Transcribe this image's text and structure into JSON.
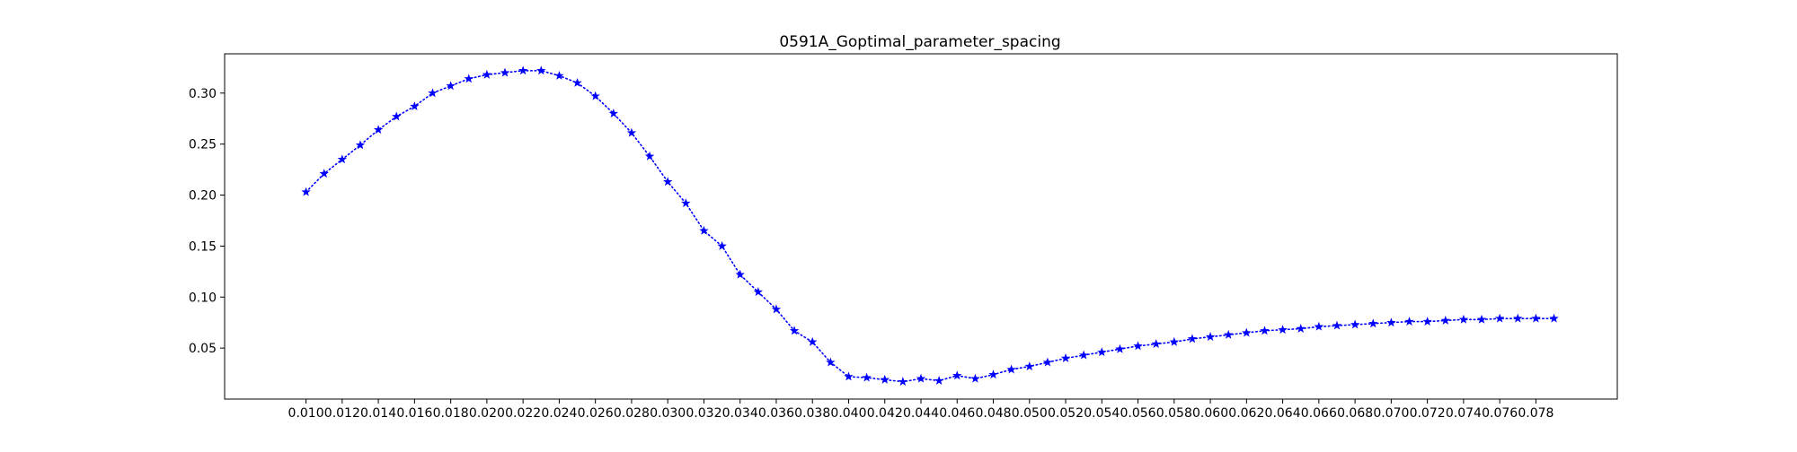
{
  "chart_data": {
    "type": "line",
    "title": "0591A_Goptimal_parameter_spacing",
    "xlabel": "",
    "ylabel": "",
    "xlim": [
      0.0055,
      0.0825
    ],
    "ylim": [
      0.0,
      0.3385
    ],
    "x_ticks": [
      "0.010",
      "0.012",
      "0.014",
      "0.016",
      "0.018",
      "0.020",
      "0.022",
      "0.024",
      "0.026",
      "0.028",
      "0.030",
      "0.032",
      "0.034",
      "0.036",
      "0.038",
      "0.040",
      "0.042",
      "0.044",
      "0.046",
      "0.048",
      "0.050",
      "0.052",
      "0.054",
      "0.056",
      "0.058",
      "0.060",
      "0.062",
      "0.064",
      "0.066",
      "0.068",
      "0.070",
      "0.072",
      "0.074",
      "0.076",
      "0.078"
    ],
    "y_ticks": [
      "0.05",
      "0.10",
      "0.15",
      "0.20",
      "0.25",
      "0.30"
    ],
    "grid": false,
    "legend": "none",
    "series": [
      {
        "color": "#0000ff",
        "line_style": "dotted",
        "marker": "star",
        "x": [
          0.01,
          0.011,
          0.012,
          0.013,
          0.014,
          0.015,
          0.016,
          0.017,
          0.018,
          0.019,
          0.02,
          0.021,
          0.022,
          0.023,
          0.024,
          0.025,
          0.026,
          0.027,
          0.028,
          0.029,
          0.03,
          0.031,
          0.032,
          0.033,
          0.034,
          0.035,
          0.036,
          0.037,
          0.038,
          0.039,
          0.04,
          0.041,
          0.042,
          0.043,
          0.044,
          0.045,
          0.046,
          0.047,
          0.048,
          0.049,
          0.05,
          0.051,
          0.052,
          0.053,
          0.054,
          0.055,
          0.056,
          0.057,
          0.058,
          0.059,
          0.06,
          0.061,
          0.062,
          0.063,
          0.064,
          0.065,
          0.066,
          0.067,
          0.068,
          0.069,
          0.07,
          0.071,
          0.072,
          0.073,
          0.074,
          0.075,
          0.076,
          0.077,
          0.078,
          0.079
        ],
        "y": [
          0.203,
          0.221,
          0.235,
          0.249,
          0.264,
          0.277,
          0.287,
          0.3,
          0.307,
          0.314,
          0.318,
          0.32,
          0.322,
          0.322,
          0.317,
          0.31,
          0.297,
          0.28,
          0.261,
          0.238,
          0.213,
          0.192,
          0.165,
          0.15,
          0.122,
          0.105,
          0.088,
          0.067,
          0.056,
          0.036,
          0.022,
          0.021,
          0.019,
          0.017,
          0.02,
          0.018,
          0.023,
          0.02,
          0.024,
          0.029,
          0.032,
          0.036,
          0.04,
          0.043,
          0.046,
          0.049,
          0.052,
          0.054,
          0.056,
          0.059,
          0.061,
          0.063,
          0.065,
          0.067,
          0.068,
          0.069,
          0.071,
          0.072,
          0.073,
          0.074,
          0.075,
          0.076,
          0.076,
          0.077,
          0.078,
          0.078,
          0.079,
          0.079,
          0.079,
          0.079
        ]
      }
    ]
  }
}
